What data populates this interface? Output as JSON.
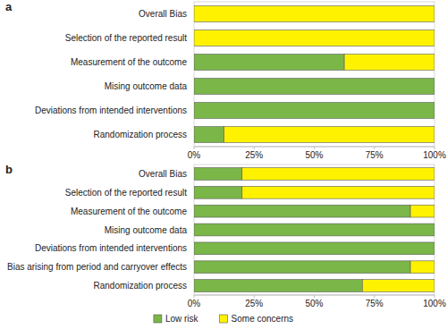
{
  "chart_data": [
    {
      "type": "bar",
      "title": "a",
      "orientation": "horizontal",
      "stacked": true,
      "categories": [
        "Overall Bias",
        "Selection of the reported result",
        "Measurement of the outcome",
        "Mising outcome data",
        "Deviations from intended interventions",
        "Randomization process"
      ],
      "series": [
        {
          "color": "#7ab648",
          "values": [
            0,
            0,
            62.5,
            100,
            100,
            12.5
          ]
        },
        {
          "color": "#fff200",
          "values": [
            100,
            100,
            37.5,
            0,
            0,
            87.5
          ]
        }
      ],
      "xlim": [
        0,
        100
      ],
      "xticks": [
        {
          "value": 0,
          "label": "0%"
        },
        {
          "value": 25,
          "label": "25%"
        },
        {
          "value": 50,
          "label": "50%"
        },
        {
          "value": 75,
          "label": "75%"
        },
        {
          "value": 100,
          "label": "100%"
        }
      ],
      "grid": false
    },
    {
      "type": "bar",
      "title": "b",
      "orientation": "horizontal",
      "stacked": true,
      "legend": "bottom",
      "categories": [
        "Overall Bias",
        "Selection of the reported result",
        "Measurement of the outcome",
        "Mising outcome data",
        "Deviations from intended interventions",
        "Bias arising from period and carryover effects",
        "Randomization process"
      ],
      "series": [
        {
          "name": "Low risk",
          "color": "#7ab648",
          "values": [
            20,
            20,
            90,
            100,
            100,
            90,
            70
          ]
        },
        {
          "name": "Some concerns",
          "color": "#fff200",
          "values": [
            80,
            80,
            10,
            0,
            0,
            10,
            30
          ]
        }
      ],
      "xlim": [
        0,
        100
      ],
      "xticks": [
        {
          "value": 0,
          "label": "0%"
        },
        {
          "value": 25,
          "label": "25%"
        },
        {
          "value": 50,
          "label": "50%"
        },
        {
          "value": 75,
          "label": "75%"
        },
        {
          "value": 100,
          "label": "100%"
        }
      ],
      "grid": false
    }
  ]
}
